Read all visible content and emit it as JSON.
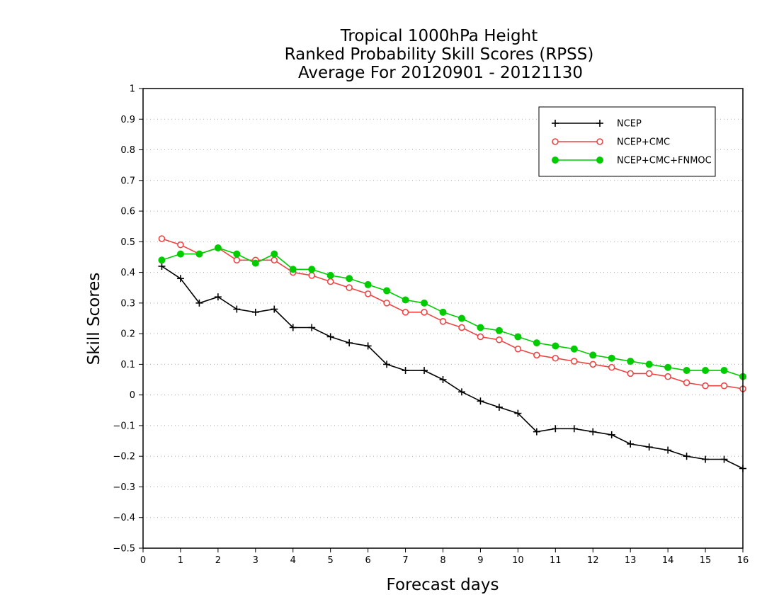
{
  "chart_data": {
    "type": "line",
    "title": [
      "Tropical 1000hPa Height",
      "Ranked Probability Skill Scores (RPSS)",
      "Average For 20120901 - 20121130"
    ],
    "xlabel": "Forecast days",
    "ylabel": "Skill Scores",
    "xlim": [
      0,
      16
    ],
    "ylim": [
      -0.5,
      1
    ],
    "xticks": [
      "0",
      "1",
      "2",
      "3",
      "4",
      "5",
      "6",
      "7",
      "8",
      "9",
      "10",
      "11",
      "12",
      "13",
      "14",
      "15",
      "16"
    ],
    "yticks": [
      "1",
      "0.9",
      "0.8",
      "0.7",
      "0.6",
      "0.5",
      "0.4",
      "0.3",
      "0.2",
      "0.1",
      "0",
      "−0.1",
      "−0.2",
      "−0.3",
      "−0.4",
      "−0.5"
    ],
    "grid": "horizontal dotted",
    "legend_position": "top-right",
    "x": [
      0.5,
      1,
      1.5,
      2,
      2.5,
      3,
      3.5,
      4,
      4.5,
      5,
      5.5,
      6,
      6.5,
      7,
      7.5,
      8,
      8.5,
      9,
      9.5,
      10,
      10.5,
      11,
      11.5,
      12,
      12.5,
      13,
      13.5,
      14,
      14.5,
      15,
      15.5,
      16
    ],
    "series": [
      {
        "name": "NCEP",
        "color": "#000000",
        "marker": "plus",
        "values": [
          0.42,
          0.38,
          0.3,
          0.32,
          0.28,
          0.27,
          0.28,
          0.22,
          0.22,
          0.19,
          0.17,
          0.16,
          0.1,
          0.08,
          0.08,
          0.05,
          0.01,
          -0.02,
          -0.04,
          -0.06,
          -0.12,
          -0.11,
          -0.11,
          -0.12,
          -0.13,
          -0.16,
          -0.17,
          -0.18,
          -0.2,
          -0.21,
          -0.21,
          -0.24
        ]
      },
      {
        "name": "NCEP+CMC",
        "color": "#ee4444",
        "marker": "open-circle",
        "values": [
          0.51,
          0.49,
          0.46,
          0.48,
          0.44,
          0.44,
          0.44,
          0.4,
          0.39,
          0.37,
          0.35,
          0.33,
          0.3,
          0.27,
          0.27,
          0.24,
          0.22,
          0.19,
          0.18,
          0.15,
          0.13,
          0.12,
          0.11,
          0.1,
          0.09,
          0.07,
          0.07,
          0.06,
          0.04,
          0.03,
          0.03,
          0.02
        ]
      },
      {
        "name": "NCEP+CMC+FNMOC",
        "color": "#00cc00",
        "marker": "filled-circle",
        "values": [
          0.44,
          0.46,
          0.46,
          0.48,
          0.46,
          0.43,
          0.46,
          0.41,
          0.41,
          0.39,
          0.38,
          0.36,
          0.34,
          0.31,
          0.3,
          0.27,
          0.25,
          0.22,
          0.21,
          0.19,
          0.17,
          0.16,
          0.15,
          0.13,
          0.12,
          0.11,
          0.1,
          0.09,
          0.08,
          0.08,
          0.08,
          0.06
        ]
      }
    ]
  }
}
